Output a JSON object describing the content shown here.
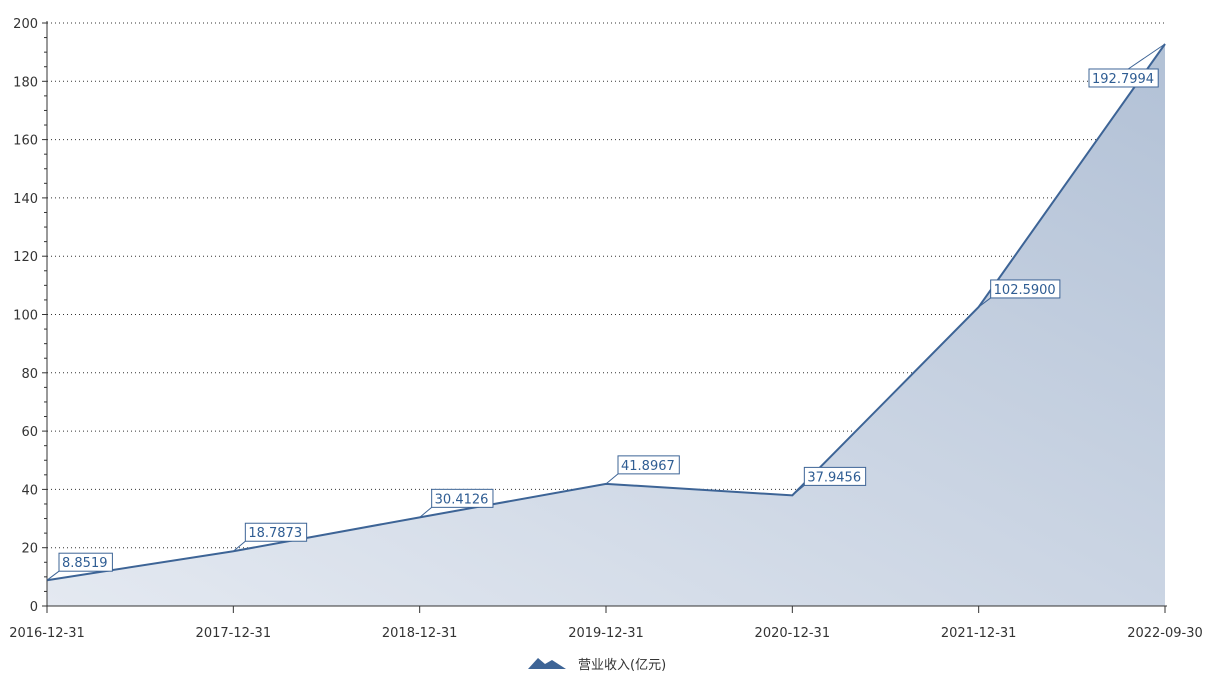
{
  "chart_data": {
    "type": "area",
    "categories": [
      "2016-12-31",
      "2017-12-31",
      "2018-12-31",
      "2019-12-31",
      "2020-12-31",
      "2021-12-31",
      "2022-09-30"
    ],
    "series": [
      {
        "name": "营业收入(亿元)",
        "values": [
          8.8519,
          18.7873,
          30.4126,
          41.8967,
          37.9456,
          102.59,
          192.7994
        ],
        "labels": [
          "8.8519",
          "18.7873",
          "30.4126",
          "41.8967",
          "37.9456",
          "102.5900",
          "192.7994"
        ]
      }
    ],
    "ylim": [
      0,
      200
    ],
    "yticks": [
      "0",
      "20",
      "40",
      "60",
      "80",
      "100",
      "120",
      "140",
      "160",
      "180",
      "200"
    ],
    "grid": true,
    "legend": "bottom-center",
    "colors": {
      "line": "#3d6496",
      "fill_light": "#e4e9f1",
      "fill_dark": "#b2c1d6",
      "label_border": "#3d6496"
    }
  }
}
